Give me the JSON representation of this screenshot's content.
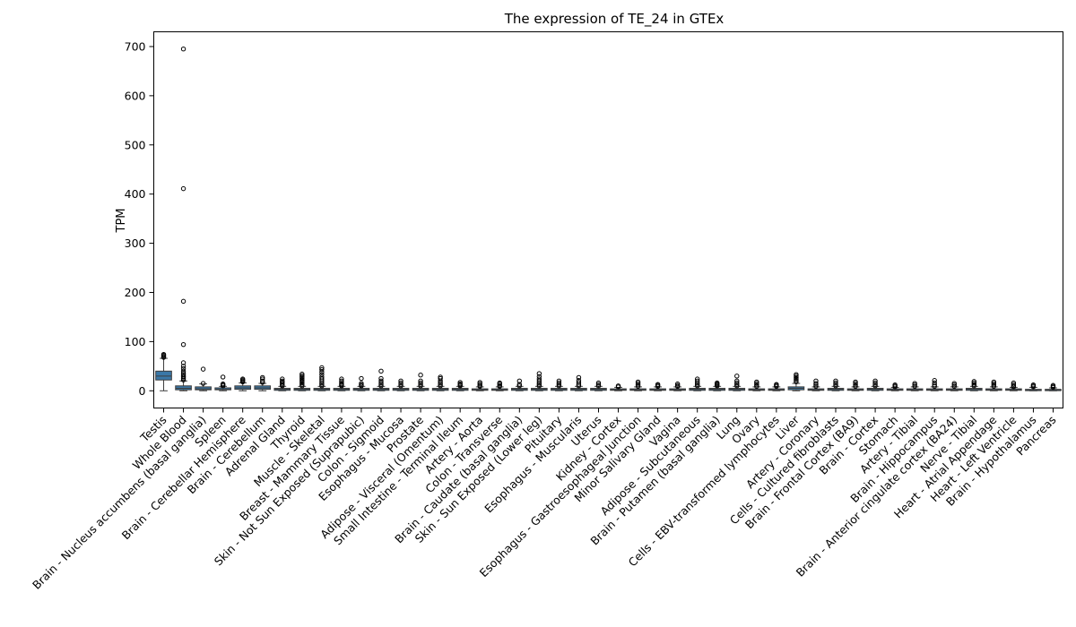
{
  "chart_data": {
    "type": "box",
    "title": "The expression of TE_24 in GTEx",
    "xlabel": "",
    "ylabel": "TPM",
    "ylim": [
      -35,
      730
    ],
    "yticks": [
      0,
      100,
      200,
      300,
      400,
      500,
      600,
      700
    ],
    "grid": false,
    "legend": "none",
    "box_color": "#3a78a8",
    "categories": [
      "Testis",
      "Whole Blood",
      "Brain - Nucleus accumbens (basal ganglia)",
      "Spleen",
      "Brain - Cerebellar Hemisphere",
      "Brain - Cerebellum",
      "Adrenal Gland",
      "Thyroid",
      "Muscle - Skeletal",
      "Breast - Mammary Tissue",
      "Skin - Not Sun Exposed (Suprapubic)",
      "Colon - Sigmoid",
      "Esophagus - Mucosa",
      "Prostate",
      "Adipose - Visceral (Omentum)",
      "Small Intestine - Terminal Ileum",
      "Artery - Aorta",
      "Colon - Transverse",
      "Brain - Caudate (basal ganglia)",
      "Skin - Sun Exposed (Lower leg)",
      "Pituitary",
      "Esophagus - Muscularis",
      "Uterus",
      "Kidney - Cortex",
      "Esophagus - Gastroesophageal Junction",
      "Minor Salivary Gland",
      "Vagina",
      "Adipose - Subcutaneous",
      "Brain - Putamen (basal ganglia)",
      "Lung",
      "Ovary",
      "Cells - EBV-transformed lymphocytes",
      "Liver",
      "Artery - Coronary",
      "Cells - Cultured fibroblasts",
      "Brain - Frontal Cortex (BA9)",
      "Brain - Cortex",
      "Stomach",
      "Artery - Tibial",
      "Brain - Hippocampus",
      "Brain - Anterior cingulate cortex (BA24)",
      "Nerve - Tibial",
      "Heart - Atrial Appendage",
      "Heart - Left Ventricle",
      "Brain - Hypothalamus",
      "Pancreas"
    ],
    "boxes": [
      {
        "min": 0,
        "q1": 22,
        "median": 30,
        "q3": 40,
        "max": 66,
        "outliers": [
          68,
          70,
          72,
          74
        ]
      },
      {
        "min": 0,
        "q1": 2,
        "median": 5,
        "q3": 10,
        "max": 20,
        "outliers": [
          22,
          25,
          28,
          30,
          33,
          36,
          40,
          45,
          50,
          57,
          94,
          182,
          411,
          695
        ]
      },
      {
        "min": 0,
        "q1": 2,
        "median": 4,
        "q3": 8,
        "max": 14,
        "outliers": [
          15,
          44
        ]
      },
      {
        "min": 0,
        "q1": 2,
        "median": 3,
        "q3": 6,
        "max": 9,
        "outliers": [
          10,
          12,
          14,
          28
        ]
      },
      {
        "min": 0,
        "q1": 3,
        "median": 6,
        "q3": 10,
        "max": 16,
        "outliers": [
          18,
          20,
          22,
          24
        ]
      },
      {
        "min": 0,
        "q1": 3,
        "median": 6,
        "q3": 10,
        "max": 15,
        "outliers": [
          17,
          20,
          24,
          27
        ]
      },
      {
        "min": 0,
        "q1": 1,
        "median": 3,
        "q3": 5,
        "max": 9,
        "outliers": [
          10,
          12,
          15,
          18,
          20,
          24
        ]
      },
      {
        "min": 0,
        "q1": 1,
        "median": 3,
        "q3": 5,
        "max": 9,
        "outliers": [
          10,
          13,
          16,
          19,
          22,
          25,
          28,
          31,
          34
        ]
      },
      {
        "min": 0,
        "q1": 1,
        "median": 3,
        "q3": 5,
        "max": 9,
        "outliers": [
          10,
          13,
          16,
          20,
          24,
          28,
          33,
          38,
          43,
          47
        ]
      },
      {
        "min": 0,
        "q1": 1,
        "median": 3,
        "q3": 5,
        "max": 9,
        "outliers": [
          10,
          12,
          14,
          17,
          20,
          24
        ]
      },
      {
        "min": 0,
        "q1": 1,
        "median": 3,
        "q3": 5,
        "max": 9,
        "outliers": [
          10,
          12,
          15,
          25
        ]
      },
      {
        "min": 0,
        "q1": 1,
        "median": 3,
        "q3": 5,
        "max": 9,
        "outliers": [
          10,
          13,
          16,
          20,
          25,
          40
        ]
      },
      {
        "min": 0,
        "q1": 1,
        "median": 3,
        "q3": 5,
        "max": 9,
        "outliers": [
          10,
          13,
          16,
          20
        ]
      },
      {
        "min": 0,
        "q1": 1,
        "median": 3,
        "q3": 5,
        "max": 9,
        "outliers": [
          10,
          13,
          16,
          20,
          32
        ]
      },
      {
        "min": 0,
        "q1": 1,
        "median": 3,
        "q3": 5,
        "max": 9,
        "outliers": [
          10,
          13,
          16,
          20,
          25,
          28
        ]
      },
      {
        "min": 0,
        "q1": 1,
        "median": 3,
        "q3": 5,
        "max": 9,
        "outliers": [
          10,
          12,
          14,
          17
        ]
      },
      {
        "min": 0,
        "q1": 1,
        "median": 2,
        "q3": 4,
        "max": 8,
        "outliers": [
          9,
          11,
          14,
          17
        ]
      },
      {
        "min": 0,
        "q1": 1,
        "median": 2,
        "q3": 4,
        "max": 8,
        "outliers": [
          9,
          11,
          14,
          16
        ]
      },
      {
        "min": 0,
        "q1": 1,
        "median": 3,
        "q3": 5,
        "max": 9,
        "outliers": [
          10,
          13,
          20
        ]
      },
      {
        "min": 0,
        "q1": 1,
        "median": 3,
        "q3": 5,
        "max": 9,
        "outliers": [
          10,
          13,
          16,
          20,
          24,
          29,
          35
        ]
      },
      {
        "min": 0,
        "q1": 1,
        "median": 3,
        "q3": 5,
        "max": 9,
        "outliers": [
          10,
          13,
          16,
          20
        ]
      },
      {
        "min": 0,
        "q1": 1,
        "median": 3,
        "q3": 5,
        "max": 9,
        "outliers": [
          10,
          13,
          17,
          21,
          27
        ]
      },
      {
        "min": 0,
        "q1": 1,
        "median": 3,
        "q3": 5,
        "max": 9,
        "outliers": [
          10,
          13,
          16
        ]
      },
      {
        "min": 0,
        "q1": 1,
        "median": 2,
        "q3": 4,
        "max": 7,
        "outliers": [
          8,
          10
        ]
      },
      {
        "min": 0,
        "q1": 1,
        "median": 2,
        "q3": 4,
        "max": 8,
        "outliers": [
          9,
          12,
          15,
          18
        ]
      },
      {
        "min": 0,
        "q1": 1,
        "median": 2,
        "q3": 4,
        "max": 8,
        "outliers": [
          9,
          11,
          13
        ]
      },
      {
        "min": 0,
        "q1": 1,
        "median": 2,
        "q3": 4,
        "max": 8,
        "outliers": [
          9,
          11,
          14
        ]
      },
      {
        "min": 0,
        "q1": 1,
        "median": 3,
        "q3": 5,
        "max": 9,
        "outliers": [
          10,
          13,
          16,
          20,
          24
        ]
      },
      {
        "min": 0,
        "q1": 1,
        "median": 3,
        "q3": 5,
        "max": 9,
        "outliers": [
          10,
          12,
          14,
          16
        ]
      },
      {
        "min": 0,
        "q1": 1,
        "median": 3,
        "q3": 5,
        "max": 9,
        "outliers": [
          10,
          13,
          16,
          20,
          30
        ]
      },
      {
        "min": 0,
        "q1": 1,
        "median": 2,
        "q3": 4,
        "max": 8,
        "outliers": [
          9,
          12,
          15,
          18
        ]
      },
      {
        "min": 0,
        "q1": 1,
        "median": 2,
        "q3": 4,
        "max": 8,
        "outliers": [
          9,
          11,
          13
        ]
      },
      {
        "min": 0,
        "q1": 2,
        "median": 5,
        "q3": 8,
        "max": 15,
        "outliers": [
          18,
          21,
          24,
          27,
          30,
          33
        ]
      },
      {
        "min": 0,
        "q1": 1,
        "median": 2,
        "q3": 4,
        "max": 8,
        "outliers": [
          9,
          12,
          15,
          20
        ]
      },
      {
        "min": 0,
        "q1": 1,
        "median": 3,
        "q3": 5,
        "max": 9,
        "outliers": [
          10,
          13,
          16,
          20
        ]
      },
      {
        "min": 0,
        "q1": 1,
        "median": 2,
        "q3": 4,
        "max": 8,
        "outliers": [
          9,
          12,
          15,
          18
        ]
      },
      {
        "min": 0,
        "q1": 1,
        "median": 3,
        "q3": 5,
        "max": 9,
        "outliers": [
          10,
          13,
          16,
          20
        ]
      },
      {
        "min": 0,
        "q1": 1,
        "median": 2,
        "q3": 4,
        "max": 7,
        "outliers": [
          8,
          10,
          12
        ]
      },
      {
        "min": 0,
        "q1": 1,
        "median": 2,
        "q3": 4,
        "max": 8,
        "outliers": [
          9,
          12,
          15
        ]
      },
      {
        "min": 0,
        "q1": 1,
        "median": 2,
        "q3": 4,
        "max": 8,
        "outliers": [
          9,
          12,
          16,
          21
        ]
      },
      {
        "min": 0,
        "q1": 1,
        "median": 2,
        "q3": 4,
        "max": 8,
        "outliers": [
          9,
          12,
          15
        ]
      },
      {
        "min": 0,
        "q1": 1,
        "median": 3,
        "q3": 5,
        "max": 9,
        "outliers": [
          10,
          13,
          16,
          19
        ]
      },
      {
        "min": 0,
        "q1": 1,
        "median": 2,
        "q3": 4,
        "max": 8,
        "outliers": [
          9,
          12,
          15,
          18
        ]
      },
      {
        "min": 0,
        "q1": 1,
        "median": 2,
        "q3": 4,
        "max": 7,
        "outliers": [
          8,
          10,
          13,
          16
        ]
      },
      {
        "min": 0,
        "q1": 1,
        "median": 2,
        "q3": 3,
        "max": 7,
        "outliers": [
          8,
          10,
          12
        ]
      },
      {
        "min": 0,
        "q1": 1,
        "median": 2,
        "q3": 3,
        "max": 6,
        "outliers": [
          7,
          9,
          11
        ]
      }
    ]
  }
}
